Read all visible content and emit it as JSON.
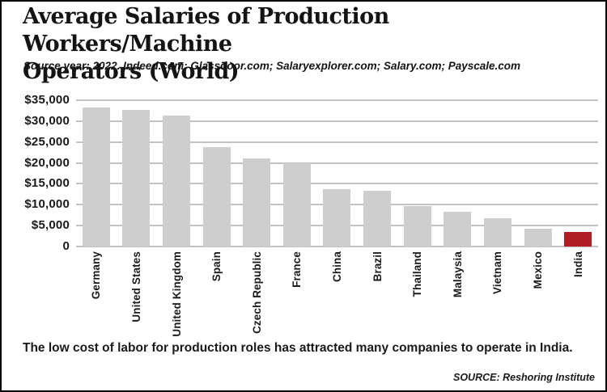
{
  "header": {
    "title": "Average Salaries of Production Workers/Machine Operators (World)",
    "title_lines": [
      "Average Salaries of Production Workers/Machine",
      "Operators (World)"
    ],
    "source_note": "Source year: 2022. Indeed.com; Glassdoor.com; Salaryexplorer.com; Salary.com; Payscale.com"
  },
  "chart_data": {
    "type": "bar",
    "title": "Average Salaries of Production Workers/Machine Operators (World)",
    "categories": [
      "Germany",
      "United States",
      "United Kingdom",
      "Spain",
      "Czech Republic",
      "France",
      "China",
      "Brazil",
      "Thailand",
      "Malaysia",
      "Vietnam",
      "Mexico",
      "India"
    ],
    "values": [
      33200,
      32700,
      31400,
      23800,
      21100,
      19900,
      13700,
      13400,
      9700,
      8300,
      6800,
      4200,
      3400
    ],
    "xlabel": "",
    "ylabel": "",
    "ylim": [
      0,
      35000
    ],
    "ytick_step": 5000,
    "ytick_labels": [
      "$35,000",
      "$30,000",
      "$25,000",
      "$20,000",
      "$15,000",
      "$10,000",
      "$5,000",
      "0"
    ],
    "grid": true,
    "legend": "none",
    "bar_color": "#cdced0",
    "highlight_category": "India",
    "highlight_color": "#b01e23"
  },
  "footer": {
    "annotation": "The low cost of labor for production roles has attracted many companies to operate in India.",
    "source": "SOURCE: Reshoring Institute"
  }
}
